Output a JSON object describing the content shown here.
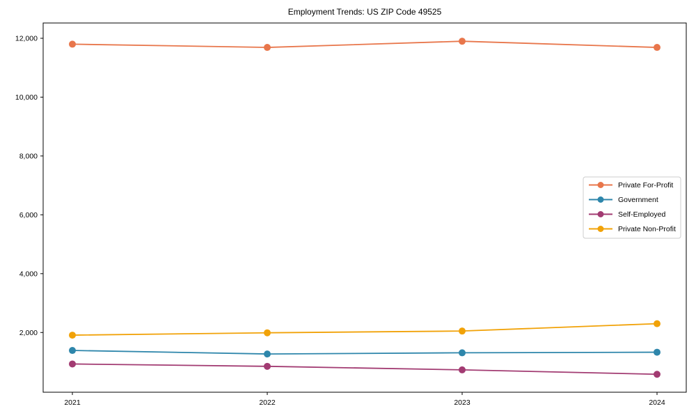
{
  "chart_data": {
    "type": "line",
    "title": "Employment Trends: US ZIP Code 49525",
    "xlabel": "",
    "ylabel": "",
    "x": [
      2021,
      2022,
      2023,
      2024
    ],
    "xtick_labels": [
      "2021",
      "2022",
      "2023",
      "2024"
    ],
    "yticks": [
      2000,
      4000,
      6000,
      8000,
      10000,
      12000
    ],
    "ytick_labels": [
      "2,000",
      "4,000",
      "6,000",
      "8,000",
      "10,000",
      "12,000"
    ],
    "ylim": [
      -30,
      12520
    ],
    "grid": false,
    "legend_position": "right-middle",
    "axis_color": "#000000",
    "background_color": "#ffffff",
    "series": [
      {
        "name": "Private For-Profit",
        "color": "#E8764B",
        "values": [
          11800,
          11690,
          11900,
          11690
        ]
      },
      {
        "name": "Government",
        "color": "#2E86AB",
        "values": [
          1390,
          1270,
          1310,
          1330
        ]
      },
      {
        "name": "Self-Employed",
        "color": "#A23B72",
        "values": [
          930,
          850,
          730,
          580
        ]
      },
      {
        "name": "Private Non-Profit",
        "color": "#F1A208",
        "values": [
          1910,
          1990,
          2050,
          2300
        ]
      }
    ]
  }
}
